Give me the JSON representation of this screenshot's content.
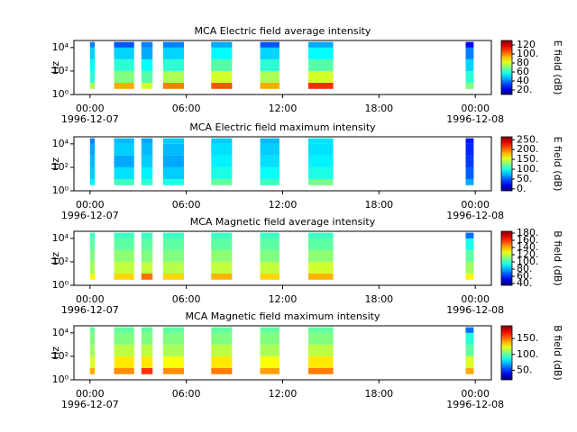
{
  "chart_data": [
    {
      "type": "heatmap",
      "title": "MCA  Electric field average intensity",
      "ylabel": "Hz",
      "colorbar_label": "E field (dB)",
      "xlim": [
        -1,
        25
      ],
      "ylim": [
        1,
        40000
      ],
      "log_y": true,
      "colormap": "jet",
      "xticks": [
        {
          "value": 0,
          "label": "00:00"
        },
        {
          "value": 6,
          "label": "06:00"
        },
        {
          "value": 12,
          "label": "12:00"
        },
        {
          "value": 18,
          "label": "18:00"
        },
        {
          "value": 24,
          "label": "00:00"
        }
      ],
      "xdate_labels": [
        {
          "value": 0,
          "label": "1996-12-07"
        },
        {
          "value": 24,
          "label": "1996-12-08"
        }
      ],
      "yticks": [
        {
          "value": 1,
          "label": "10⁰"
        },
        {
          "value": 100,
          "label": "10²"
        },
        {
          "value": 10000,
          "label": "10⁴"
        }
      ],
      "clim": [
        10,
        130
      ],
      "cticks": [
        {
          "value": 20,
          "label": "20."
        },
        40,
        60,
        80,
        {
          "value": 100,
          "label": "100."
        },
        120
      ],
      "freq_bins": [
        3,
        10,
        100,
        1000,
        10000,
        30000
      ],
      "segments": [
        {
          "start": 0,
          "end": 0.3,
          "values": [
            75,
            60,
            55,
            50,
            40
          ]
        },
        {
          "start": 1.5,
          "end": 2.75,
          "values": [
            95,
            70,
            60,
            50,
            35
          ]
        },
        {
          "start": 3.2,
          "end": 3.9,
          "values": [
            80,
            65,
            55,
            45,
            40
          ]
        },
        {
          "start": 4.55,
          "end": 5.85,
          "values": [
            100,
            75,
            60,
            50,
            40
          ]
        },
        {
          "start": 7.55,
          "end": 8.85,
          "values": [
            105,
            80,
            65,
            55,
            45
          ]
        },
        {
          "start": 10.6,
          "end": 11.8,
          "values": [
            95,
            75,
            60,
            50,
            35
          ]
        },
        {
          "start": 13.6,
          "end": 15.15,
          "values": [
            110,
            80,
            65,
            55,
            45
          ]
        },
        {
          "start": 23.4,
          "end": 23.9,
          "values": [
            70,
            60,
            50,
            40,
            25
          ]
        }
      ]
    },
    {
      "type": "heatmap",
      "title": "MCA  Electric field maximum intensity",
      "ylabel": "Hz",
      "colorbar_label": "E field (dB)",
      "xlim": [
        -1,
        25
      ],
      "ylim": [
        1,
        40000
      ],
      "log_y": true,
      "colormap": "jet",
      "xticks": [
        {
          "value": 0,
          "label": "00:00"
        },
        {
          "value": 6,
          "label": "06:00"
        },
        {
          "value": 12,
          "label": "12:00"
        },
        {
          "value": 18,
          "label": "18:00"
        },
        {
          "value": 24,
          "label": "00:00"
        }
      ],
      "xdate_labels": [
        {
          "value": 0,
          "label": "1996-12-07"
        },
        {
          "value": 24,
          "label": "1996-12-08"
        }
      ],
      "yticks": [
        {
          "value": 1,
          "label": "10⁰"
        },
        {
          "value": 100,
          "label": "10²"
        },
        {
          "value": 10000,
          "label": "10⁴"
        }
      ],
      "clim": [
        -10,
        265
      ],
      "cticks": [
        {
          "value": 0,
          "label": "0."
        },
        {
          "value": 50,
          "label": "50."
        },
        {
          "value": 100,
          "label": "100."
        },
        {
          "value": 150,
          "label": "150."
        },
        {
          "value": 200,
          "label": "200."
        },
        {
          "value": 250,
          "label": "250."
        }
      ],
      "freq_bins": [
        3,
        10,
        100,
        1000,
        10000,
        30000
      ],
      "segments": [
        {
          "start": 0,
          "end": 0.3,
          "values": [
            90,
            80,
            75,
            70,
            60
          ]
        },
        {
          "start": 1.5,
          "end": 2.75,
          "values": [
            110,
            85,
            70,
            80,
            75
          ]
        },
        {
          "start": 3.2,
          "end": 3.9,
          "values": [
            105,
            90,
            80,
            75,
            70
          ]
        },
        {
          "start": 4.55,
          "end": 5.85,
          "values": [
            100,
            80,
            70,
            75,
            80
          ]
        },
        {
          "start": 7.55,
          "end": 8.85,
          "values": [
            120,
            100,
            90,
            85,
            80
          ]
        },
        {
          "start": 10.6,
          "end": 11.8,
          "values": [
            110,
            95,
            85,
            80,
            75
          ]
        },
        {
          "start": 13.6,
          "end": 15.15,
          "values": [
            125,
            100,
            90,
            85,
            85
          ]
        },
        {
          "start": 23.4,
          "end": 23.9,
          "values": [
            70,
            50,
            40,
            35,
            30
          ]
        }
      ]
    },
    {
      "type": "heatmap",
      "title": "MCA  Magnetic field average intensity",
      "ylabel": "Hz",
      "colorbar_label": "B field (dB)",
      "xlim": [
        -1,
        25
      ],
      "ylim": [
        1,
        40000
      ],
      "log_y": true,
      "colormap": "jet",
      "xticks": [
        {
          "value": 0,
          "label": "00:00"
        },
        {
          "value": 6,
          "label": "06:00"
        },
        {
          "value": 12,
          "label": "12:00"
        },
        {
          "value": 18,
          "label": "18:00"
        },
        {
          "value": 24,
          "label": "00:00"
        }
      ],
      "xdate_labels": [
        {
          "value": 0,
          "label": "1996-12-07"
        },
        {
          "value": 24,
          "label": "1996-12-08"
        }
      ],
      "yticks": [
        {
          "value": 1,
          "label": "10⁰"
        },
        {
          "value": 100,
          "label": "10²"
        },
        {
          "value": 10000,
          "label": "10⁴"
        }
      ],
      "clim": [
        35,
        185
      ],
      "cticks": [
        {
          "value": 40,
          "label": "40."
        },
        {
          "value": 60,
          "label": "60."
        },
        {
          "value": 80,
          "label": "80."
        },
        {
          "value": 100,
          "label": "100."
        },
        {
          "value": 120,
          "label": "120."
        },
        {
          "value": 140,
          "label": "140."
        },
        {
          "value": 160,
          "label": "160."
        },
        {
          "value": 180,
          "label": "180."
        }
      ],
      "freq_bins": [
        3,
        10,
        100,
        1000,
        10000,
        30000
      ],
      "segments": [
        {
          "start": 0,
          "end": 0.3,
          "values": [
            130,
            115,
            110,
            105,
            100
          ]
        },
        {
          "start": 1.5,
          "end": 2.75,
          "values": [
            135,
            120,
            112,
            105,
            100
          ]
        },
        {
          "start": 3.2,
          "end": 3.9,
          "values": [
            150,
            120,
            110,
            105,
            100
          ]
        },
        {
          "start": 4.55,
          "end": 5.85,
          "values": [
            135,
            118,
            110,
            105,
            100
          ]
        },
        {
          "start": 7.55,
          "end": 8.85,
          "values": [
            140,
            120,
            112,
            105,
            100
          ]
        },
        {
          "start": 10.6,
          "end": 11.8,
          "values": [
            135,
            120,
            110,
            105,
            100
          ]
        },
        {
          "start": 13.6,
          "end": 15.15,
          "values": [
            140,
            122,
            112,
            105,
            100
          ]
        },
        {
          "start": 23.4,
          "end": 23.9,
          "values": [
            130,
            115,
            105,
            95,
            70
          ]
        }
      ]
    },
    {
      "type": "heatmap",
      "title": "MCA  Magnetic field maximum intensity",
      "ylabel": "Hz",
      "colorbar_label": "B field (dB)",
      "xlim": [
        -1,
        25
      ],
      "ylim": [
        1,
        40000
      ],
      "log_y": true,
      "colormap": "jet",
      "xticks": [
        {
          "value": 0,
          "label": "00:00"
        },
        {
          "value": 6,
          "label": "06:00"
        },
        {
          "value": 12,
          "label": "12:00"
        },
        {
          "value": 18,
          "label": "18:00"
        },
        {
          "value": 24,
          "label": "00:00"
        }
      ],
      "xdate_labels": [
        {
          "value": 0,
          "label": "1996-12-07"
        },
        {
          "value": 24,
          "label": "1996-12-08"
        }
      ],
      "yticks": [
        {
          "value": 1,
          "label": "10⁰"
        },
        {
          "value": 100,
          "label": "10²"
        },
        {
          "value": 10000,
          "label": "10⁴"
        }
      ],
      "clim": [
        20,
        190
      ],
      "cticks": [
        {
          "value": 50,
          "label": "50."
        },
        {
          "value": 100,
          "label": "100."
        },
        {
          "value": 150,
          "label": "150."
        }
      ],
      "freq_bins": [
        3,
        10,
        100,
        1000,
        10000,
        30000
      ],
      "segments": [
        {
          "start": 0,
          "end": 0.3,
          "values": [
            140,
            120,
            110,
            105,
            100
          ]
        },
        {
          "start": 1.5,
          "end": 2.75,
          "values": [
            145,
            130,
            115,
            105,
            100
          ]
        },
        {
          "start": 3.2,
          "end": 3.9,
          "values": [
            160,
            130,
            115,
            105,
            100
          ]
        },
        {
          "start": 4.55,
          "end": 5.85,
          "values": [
            145,
            125,
            112,
            105,
            100
          ]
        },
        {
          "start": 7.55,
          "end": 8.85,
          "values": [
            148,
            130,
            115,
            105,
            100
          ]
        },
        {
          "start": 10.6,
          "end": 11.8,
          "values": [
            142,
            125,
            112,
            105,
            100
          ]
        },
        {
          "start": 13.6,
          "end": 15.15,
          "values": [
            148,
            130,
            115,
            105,
            100
          ]
        },
        {
          "start": 23.4,
          "end": 23.9,
          "values": [
            140,
            120,
            100,
            90,
            60
          ]
        }
      ]
    }
  ]
}
